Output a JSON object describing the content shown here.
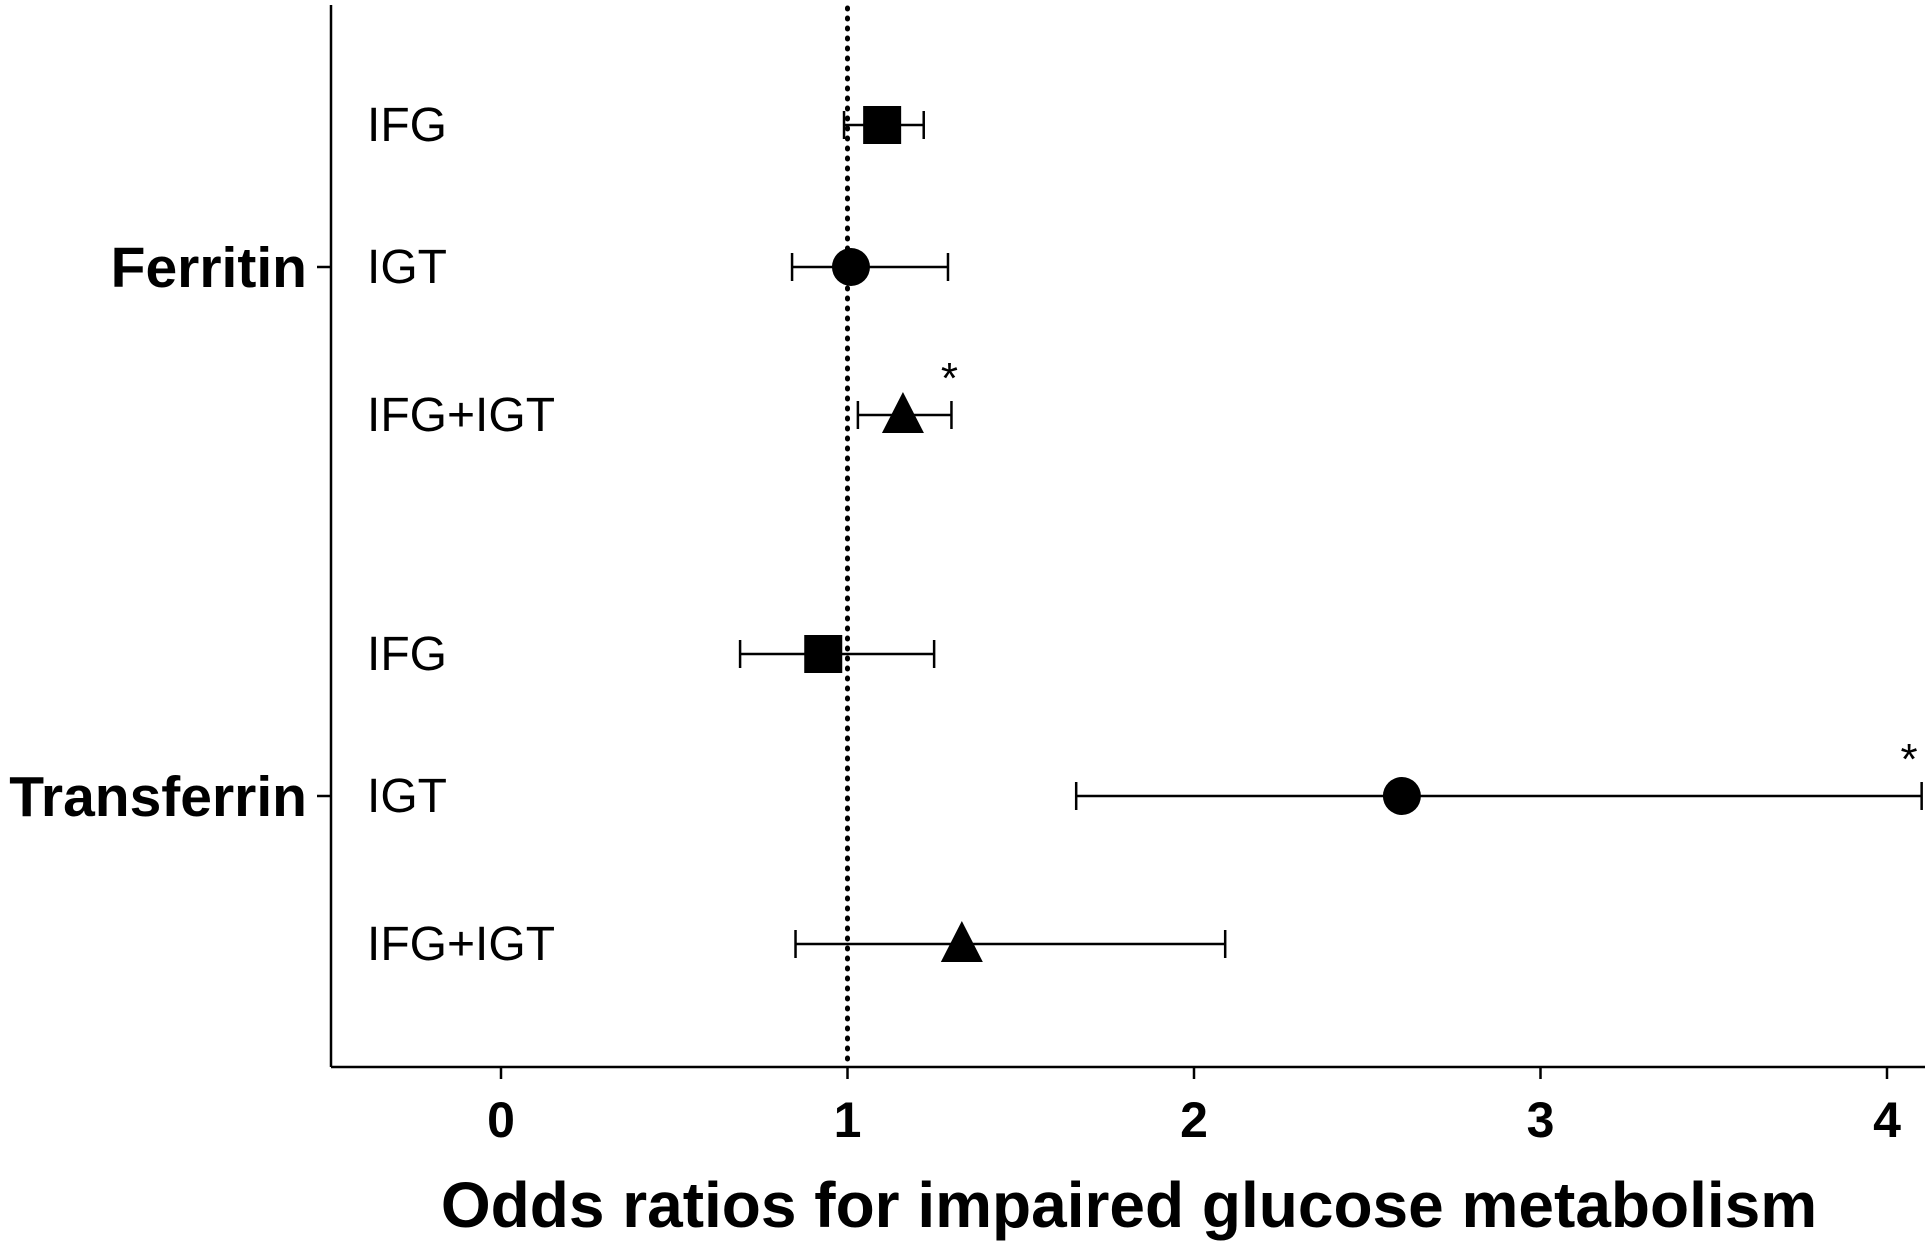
{
  "chart_data": {
    "type": "forest",
    "xlabel": "Odds ratios for impaired glucose metabolism",
    "xlim": [
      -0.5,
      4.1
    ],
    "xticks": [
      "0",
      "1",
      "2",
      "3",
      "4"
    ],
    "reference_line": 1,
    "groups": [
      {
        "label": "Ferritin",
        "rows": [
          {
            "label": "IFG",
            "or": 1.1,
            "lo": 0.99,
            "hi": 1.22,
            "marker": "square",
            "significant": false
          },
          {
            "label": "IGT",
            "or": 1.01,
            "lo": 0.84,
            "hi": 1.29,
            "marker": "circle",
            "significant": false
          },
          {
            "label": "IFG+IGT",
            "or": 1.16,
            "lo": 1.03,
            "hi": 1.3,
            "marker": "triangle",
            "significant": true
          }
        ]
      },
      {
        "label": "Transferrin",
        "rows": [
          {
            "label": "IFG",
            "or": 0.93,
            "lo": 0.69,
            "hi": 1.25,
            "marker": "square",
            "significant": false
          },
          {
            "label": "IGT",
            "or": 2.6,
            "lo": 1.66,
            "hi": 4.1,
            "marker": "circle",
            "significant": true
          },
          {
            "label": "IFG+IGT",
            "or": 1.33,
            "lo": 0.85,
            "hi": 2.09,
            "marker": "triangle",
            "significant": false
          }
        ]
      }
    ],
    "significance_marker": "*"
  }
}
